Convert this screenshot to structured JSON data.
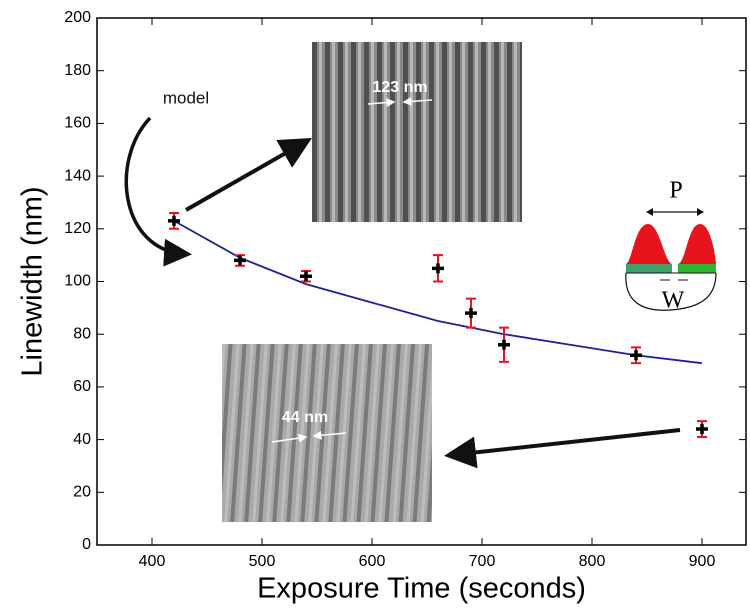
{
  "chart_data": {
    "type": "errorbar",
    "x": [
      420,
      480,
      540,
      660,
      690,
      720,
      840,
      900
    ],
    "values": [
      123,
      108,
      102,
      105,
      88,
      76,
      72,
      44
    ],
    "errors": [
      3,
      2,
      2,
      5,
      5.5,
      6.5,
      3,
      3
    ],
    "marker_color": "#000000",
    "error_color": "#e8141c",
    "model": {
      "x": [
        420,
        480,
        540,
        600,
        660,
        720,
        780,
        840,
        900
      ],
      "values": [
        123,
        109,
        99,
        92,
        85,
        80,
        76,
        72,
        69
      ],
      "color": "#1f1f99"
    },
    "xlabel": "Exposure Time (seconds)",
    "ylabel": "Linewidth (nm)",
    "xlim": [
      350,
      940
    ],
    "ylim": [
      0,
      200
    ],
    "xticks": [
      400,
      500,
      600,
      700,
      800,
      900
    ],
    "yticks": [
      0,
      20,
      40,
      60,
      80,
      100,
      120,
      140,
      160,
      180,
      200
    ],
    "annotations": {
      "model": "model",
      "top_inset": "123 nm",
      "bottom_inset": "44 nm",
      "pitch": "P",
      "width": "W"
    }
  }
}
